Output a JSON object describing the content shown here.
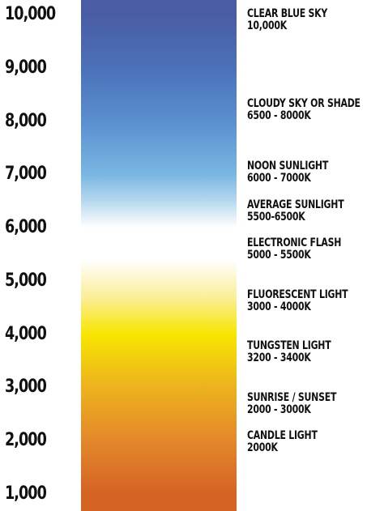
{
  "scale": {
    "ticks": [
      {
        "label": "10,000",
        "value": 10000
      },
      {
        "label": "9,000",
        "value": 9000
      },
      {
        "label": "8,000",
        "value": 8000
      },
      {
        "label": "7,000",
        "value": 7000
      },
      {
        "label": "6,000",
        "value": 6000
      },
      {
        "label": "5,000",
        "value": 5000
      },
      {
        "label": "4,000",
        "value": 4000
      },
      {
        "label": "3,000",
        "value": 3000
      },
      {
        "label": "2,000",
        "value": 2000
      },
      {
        "label": "1,000",
        "value": 1000
      }
    ],
    "range": [
      1000,
      10000
    ]
  },
  "gradient": {
    "colors": [
      {
        "value": 10000,
        "color": "#4a5da4"
      },
      {
        "value": 9000,
        "color": "#4b71b8"
      },
      {
        "value": 8000,
        "color": "#5a8fcf"
      },
      {
        "value": 7000,
        "color": "#7ab6e2"
      },
      {
        "value": 6500,
        "color": "#b6d8ee"
      },
      {
        "value": 6000,
        "color": "#ffffff"
      },
      {
        "value": 5400,
        "color": "#ffffff"
      },
      {
        "value": 4700,
        "color": "#fbee9a"
      },
      {
        "value": 4000,
        "color": "#f7e600"
      },
      {
        "value": 3000,
        "color": "#edb21e"
      },
      {
        "value": 2000,
        "color": "#e3882a"
      },
      {
        "value": 1000,
        "color": "#d56324"
      }
    ]
  },
  "sources": [
    {
      "name": "CLEAR BLUE SKY",
      "range": "10,000K"
    },
    {
      "name": "CLOUDY SKY OR SHADE",
      "range": "6500 - 8000K"
    },
    {
      "name": "NOON SUNLIGHT",
      "range": "6000 - 7000K"
    },
    {
      "name": "AVERAGE SUNLIGHT",
      "range": "5500-6500K"
    },
    {
      "name": "ELECTRONIC FLASH",
      "range": "5000 - 5500K"
    },
    {
      "name": "FLUORESCENT LIGHT",
      "range": "3000 - 4000K"
    },
    {
      "name": "TUNGSTEN LIGHT",
      "range": "3200 - 3400K"
    },
    {
      "name": "SUNRISE / SUNSET",
      "range": "2000 - 3000K"
    },
    {
      "name": "CANDLE LIGHT",
      "range": "2000K"
    }
  ]
}
